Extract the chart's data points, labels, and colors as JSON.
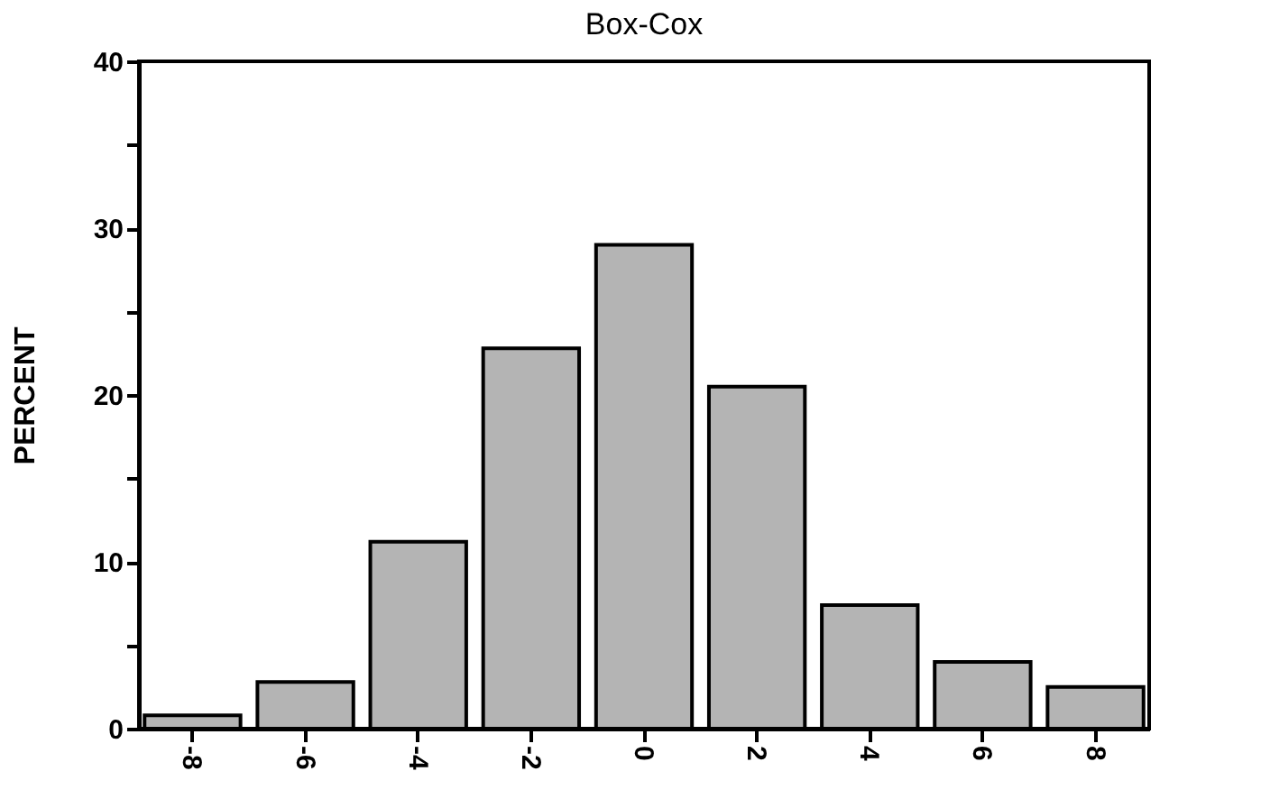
{
  "chart_data": {
    "type": "bar",
    "title": "Box-Cox",
    "ylabel": "PERCENT",
    "categories": [
      "-8",
      "-6",
      "-4",
      "-2",
      "0",
      "2",
      "4",
      "6",
      "8"
    ],
    "values": [
      0.8,
      2.8,
      11.2,
      22.8,
      29,
      20.5,
      7.4,
      4,
      2.5
    ],
    "color": "#b4b4b4",
    "ylim": [
      0,
      40
    ],
    "yticks": [
      0,
      {
        "value": 5,
        "label": null
      },
      10,
      {
        "value": 15,
        "label": null
      },
      20,
      {
        "value": 25,
        "label": null
      },
      30,
      {
        "value": 35,
        "label": null
      },
      40
    ],
    "grid": false
  }
}
